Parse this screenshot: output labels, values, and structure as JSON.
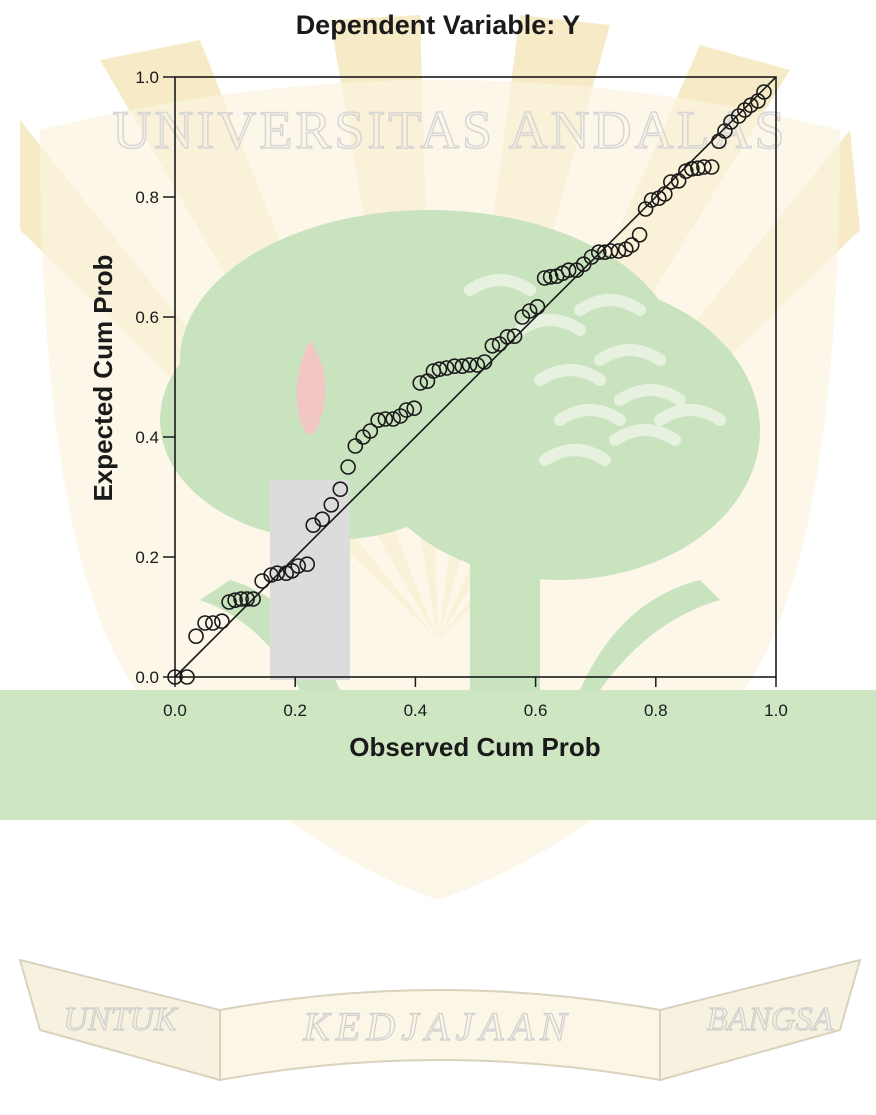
{
  "watermark": {
    "top_text": "UNIVERSITAS ANDALAS",
    "bottom_left": "UNTUK",
    "bottom_center": "KEDJAJAAN",
    "bottom_right": "BANGSA",
    "colors": {
      "green": "#c9e3bf",
      "yellow": "#f6ebc6",
      "red": "#f2c7c3",
      "gray": "#dcdcdc"
    }
  },
  "chart_data": {
    "type": "scatter",
    "title": "Dependent Variable: Y",
    "xlabel": "Observed Cum Prob",
    "ylabel": "Expected Cum Prob",
    "xlim": [
      0.0,
      1.0
    ],
    "ylim": [
      0.0,
      1.0
    ],
    "x_ticks": [
      "0.0",
      "0.2",
      "0.4",
      "0.6",
      "0.8",
      "1.0"
    ],
    "y_ticks": [
      "0.0",
      "0.2",
      "0.4",
      "0.6",
      "0.8",
      "1.0"
    ],
    "reference_line": {
      "from": [
        0.0,
        0.0
      ],
      "to": [
        1.0,
        1.0
      ]
    },
    "grid": false,
    "colors": {
      "axis": "#1a1a1a",
      "marker": "#1a1a1a"
    },
    "points": [
      [
        0.0,
        0.0
      ],
      [
        0.02,
        0.0
      ],
      [
        0.035,
        0.068
      ],
      [
        0.05,
        0.09
      ],
      [
        0.063,
        0.09
      ],
      [
        0.078,
        0.093
      ],
      [
        0.09,
        0.125
      ],
      [
        0.1,
        0.128
      ],
      [
        0.11,
        0.13
      ],
      [
        0.12,
        0.13
      ],
      [
        0.13,
        0.13
      ],
      [
        0.145,
        0.16
      ],
      [
        0.16,
        0.17
      ],
      [
        0.17,
        0.173
      ],
      [
        0.185,
        0.173
      ],
      [
        0.195,
        0.177
      ],
      [
        0.205,
        0.185
      ],
      [
        0.22,
        0.188
      ],
      [
        0.23,
        0.253
      ],
      [
        0.245,
        0.263
      ],
      [
        0.26,
        0.287
      ],
      [
        0.275,
        0.313
      ],
      [
        0.288,
        0.35
      ],
      [
        0.3,
        0.385
      ],
      [
        0.313,
        0.4
      ],
      [
        0.325,
        0.41
      ],
      [
        0.338,
        0.428
      ],
      [
        0.35,
        0.43
      ],
      [
        0.363,
        0.43
      ],
      [
        0.375,
        0.435
      ],
      [
        0.385,
        0.445
      ],
      [
        0.398,
        0.448
      ],
      [
        0.408,
        0.49
      ],
      [
        0.42,
        0.493
      ],
      [
        0.43,
        0.51
      ],
      [
        0.44,
        0.513
      ],
      [
        0.452,
        0.515
      ],
      [
        0.465,
        0.518
      ],
      [
        0.478,
        0.518
      ],
      [
        0.49,
        0.52
      ],
      [
        0.503,
        0.52
      ],
      [
        0.515,
        0.525
      ],
      [
        0.528,
        0.552
      ],
      [
        0.54,
        0.555
      ],
      [
        0.553,
        0.567
      ],
      [
        0.565,
        0.568
      ],
      [
        0.578,
        0.6
      ],
      [
        0.59,
        0.61
      ],
      [
        0.603,
        0.617
      ],
      [
        0.615,
        0.665
      ],
      [
        0.625,
        0.667
      ],
      [
        0.635,
        0.668
      ],
      [
        0.645,
        0.673
      ],
      [
        0.655,
        0.678
      ],
      [
        0.668,
        0.678
      ],
      [
        0.68,
        0.688
      ],
      [
        0.693,
        0.7
      ],
      [
        0.705,
        0.708
      ],
      [
        0.715,
        0.708
      ],
      [
        0.725,
        0.71
      ],
      [
        0.738,
        0.71
      ],
      [
        0.75,
        0.713
      ],
      [
        0.76,
        0.72
      ],
      [
        0.773,
        0.737
      ],
      [
        0.783,
        0.78
      ],
      [
        0.793,
        0.795
      ],
      [
        0.805,
        0.798
      ],
      [
        0.815,
        0.805
      ],
      [
        0.825,
        0.825
      ],
      [
        0.838,
        0.827
      ],
      [
        0.85,
        0.843
      ],
      [
        0.86,
        0.847
      ],
      [
        0.87,
        0.848
      ],
      [
        0.88,
        0.85
      ],
      [
        0.893,
        0.85
      ],
      [
        0.905,
        0.893
      ],
      [
        0.915,
        0.91
      ],
      [
        0.925,
        0.925
      ],
      [
        0.938,
        0.935
      ],
      [
        0.948,
        0.945
      ],
      [
        0.958,
        0.953
      ],
      [
        0.97,
        0.96
      ],
      [
        0.98,
        0.975
      ]
    ]
  }
}
